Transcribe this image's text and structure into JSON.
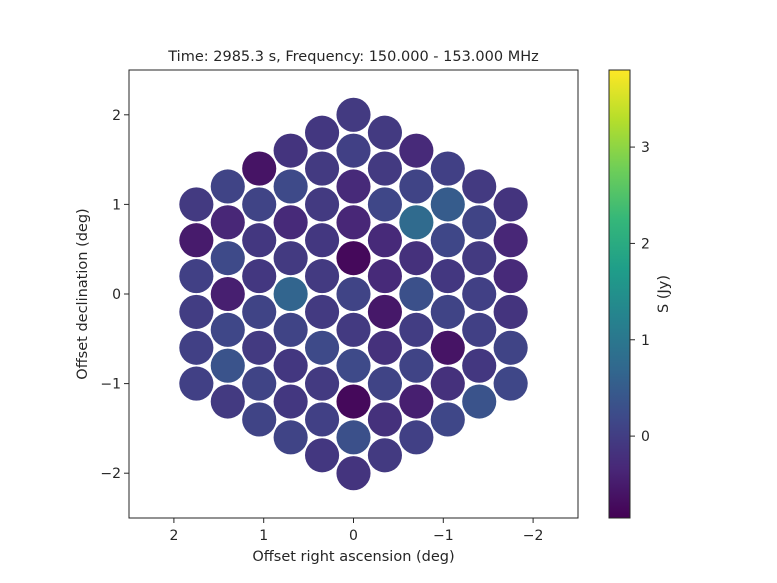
{
  "chart_data": {
    "type": "heatmap",
    "title": "Time: 2985.3 s, Frequency: 150.000 - 153.000 MHz",
    "xlabel": "Offset right ascension (deg)",
    "ylabel": "Offset declination (deg)",
    "colorbar_label": "S (Jy)",
    "colormap": "viridis",
    "color_range": [
      -0.85,
      3.8
    ],
    "xlim": [
      2.5,
      -2.5
    ],
    "ylim": [
      -2.5,
      2.5
    ],
    "x_ticks": [
      2,
      1,
      0,
      -1,
      -2
    ],
    "x_tick_labels": [
      "2",
      "1",
      "0",
      "−1",
      "−2"
    ],
    "y_ticks": [
      2,
      1,
      0,
      -1,
      -2
    ],
    "y_tick_labels": [
      "2",
      "1",
      "0",
      "−1",
      "−2"
    ],
    "colorbar_ticks": [
      0,
      1,
      2,
      3
    ],
    "colorbar_tick_labels": [
      "0",
      "1",
      "2",
      "3"
    ],
    "beam_radius_deg": 0.19,
    "beams": [
      {
        "x": 0.0,
        "y": 2.0,
        "s": -0.05
      },
      {
        "x": 0.35,
        "y": 1.8,
        "s": -0.1
      },
      {
        "x": -0.35,
        "y": 1.8,
        "s": -0.05
      },
      {
        "x": 0.7,
        "y": 1.6,
        "s": -0.15
      },
      {
        "x": 0.0,
        "y": 1.6,
        "s": 0.05
      },
      {
        "x": -0.7,
        "y": 1.6,
        "s": -0.3
      },
      {
        "x": 1.05,
        "y": 1.4,
        "s": -0.6
      },
      {
        "x": 0.35,
        "y": 1.4,
        "s": -0.05
      },
      {
        "x": -0.35,
        "y": 1.4,
        "s": -0.05
      },
      {
        "x": -1.05,
        "y": 1.4,
        "s": 0.05
      },
      {
        "x": 1.4,
        "y": 1.2,
        "s": 0.1
      },
      {
        "x": 0.7,
        "y": 1.2,
        "s": 0.2
      },
      {
        "x": 0.0,
        "y": 1.2,
        "s": -0.3
      },
      {
        "x": -0.7,
        "y": 1.2,
        "s": 0.1
      },
      {
        "x": -1.4,
        "y": 1.2,
        "s": -0.05
      },
      {
        "x": 1.75,
        "y": 1.0,
        "s": -0.05
      },
      {
        "x": 1.05,
        "y": 1.0,
        "s": 0.1
      },
      {
        "x": 0.35,
        "y": 1.0,
        "s": -0.05
      },
      {
        "x": -0.35,
        "y": 1.0,
        "s": 0.15
      },
      {
        "x": -1.05,
        "y": 1.0,
        "s": 0.5
      },
      {
        "x": -1.75,
        "y": 1.0,
        "s": -0.15
      },
      {
        "x": 1.4,
        "y": 0.8,
        "s": -0.35
      },
      {
        "x": 0.7,
        "y": 0.8,
        "s": -0.3
      },
      {
        "x": 0.0,
        "y": 0.8,
        "s": -0.35
      },
      {
        "x": -0.7,
        "y": 0.8,
        "s": 0.75
      },
      {
        "x": -1.4,
        "y": 0.8,
        "s": 0.1
      },
      {
        "x": 1.75,
        "y": 0.6,
        "s": -0.5
      },
      {
        "x": 1.05,
        "y": 0.6,
        "s": -0.1
      },
      {
        "x": 0.35,
        "y": 0.6,
        "s": -0.1
      },
      {
        "x": -0.35,
        "y": 0.6,
        "s": -0.3
      },
      {
        "x": -1.05,
        "y": 0.6,
        "s": 0.15
      },
      {
        "x": -1.75,
        "y": 0.6,
        "s": -0.35
      },
      {
        "x": 1.4,
        "y": 0.4,
        "s": 0.2
      },
      {
        "x": 0.7,
        "y": 0.4,
        "s": -0.05
      },
      {
        "x": 0.0,
        "y": 0.4,
        "s": -0.75
      },
      {
        "x": -0.7,
        "y": 0.4,
        "s": -0.2
      },
      {
        "x": -1.4,
        "y": 0.4,
        "s": -0.05
      },
      {
        "x": 1.75,
        "y": 0.2,
        "s": 0.05
      },
      {
        "x": 1.05,
        "y": 0.2,
        "s": -0.1
      },
      {
        "x": 0.35,
        "y": 0.2,
        "s": -0.05
      },
      {
        "x": -0.35,
        "y": 0.2,
        "s": -0.3
      },
      {
        "x": -1.05,
        "y": 0.2,
        "s": -0.1
      },
      {
        "x": -1.75,
        "y": 0.2,
        "s": -0.3
      },
      {
        "x": 1.4,
        "y": 0.0,
        "s": -0.45
      },
      {
        "x": 0.7,
        "y": 0.0,
        "s": 0.65
      },
      {
        "x": 0.0,
        "y": 0.0,
        "s": 0.1
      },
      {
        "x": -0.7,
        "y": 0.0,
        "s": 0.3
      },
      {
        "x": -1.4,
        "y": 0.0,
        "s": 0.05
      },
      {
        "x": 1.75,
        "y": -0.2,
        "s": 0.0
      },
      {
        "x": 1.05,
        "y": -0.2,
        "s": 0.1
      },
      {
        "x": 0.35,
        "y": -0.2,
        "s": -0.05
      },
      {
        "x": -0.35,
        "y": -0.2,
        "s": -0.55
      },
      {
        "x": -1.05,
        "y": -0.2,
        "s": 0.1
      },
      {
        "x": -1.75,
        "y": -0.2,
        "s": -0.15
      },
      {
        "x": 1.4,
        "y": -0.4,
        "s": 0.15
      },
      {
        "x": 0.7,
        "y": -0.4,
        "s": 0.1
      },
      {
        "x": 0.0,
        "y": -0.4,
        "s": -0.05
      },
      {
        "x": -0.7,
        "y": -0.4,
        "s": 0.0
      },
      {
        "x": -1.4,
        "y": -0.4,
        "s": 0.05
      },
      {
        "x": 1.75,
        "y": -0.6,
        "s": 0.05
      },
      {
        "x": 1.05,
        "y": -0.6,
        "s": -0.05
      },
      {
        "x": 0.35,
        "y": -0.6,
        "s": 0.2
      },
      {
        "x": -0.35,
        "y": -0.6,
        "s": -0.2
      },
      {
        "x": -1.05,
        "y": -0.6,
        "s": -0.6
      },
      {
        "x": -1.75,
        "y": -0.6,
        "s": 0.1
      },
      {
        "x": 1.4,
        "y": -0.8,
        "s": 0.35
      },
      {
        "x": 0.7,
        "y": -0.8,
        "s": -0.1
      },
      {
        "x": 0.0,
        "y": -0.8,
        "s": 0.2
      },
      {
        "x": -0.7,
        "y": -0.8,
        "s": 0.1
      },
      {
        "x": -1.4,
        "y": -0.8,
        "s": -0.1
      },
      {
        "x": 1.75,
        "y": -1.0,
        "s": 0.05
      },
      {
        "x": 1.05,
        "y": -1.0,
        "s": 0.1
      },
      {
        "x": 0.35,
        "y": -1.0,
        "s": -0.05
      },
      {
        "x": -0.35,
        "y": -1.0,
        "s": 0.1
      },
      {
        "x": -1.05,
        "y": -1.0,
        "s": -0.2
      },
      {
        "x": -1.75,
        "y": -1.0,
        "s": 0.15
      },
      {
        "x": 1.4,
        "y": -1.2,
        "s": -0.05
      },
      {
        "x": 0.7,
        "y": -1.2,
        "s": -0.1
      },
      {
        "x": 0.0,
        "y": -1.2,
        "s": -0.75
      },
      {
        "x": -0.7,
        "y": -1.2,
        "s": -0.45
      },
      {
        "x": -1.4,
        "y": -1.2,
        "s": 0.35
      },
      {
        "x": 1.05,
        "y": -1.4,
        "s": 0.1
      },
      {
        "x": 0.35,
        "y": -1.4,
        "s": 0.05
      },
      {
        "x": -0.35,
        "y": -1.4,
        "s": -0.2
      },
      {
        "x": -1.05,
        "y": -1.4,
        "s": 0.15
      },
      {
        "x": 0.7,
        "y": -1.6,
        "s": 0.1
      },
      {
        "x": 0.0,
        "y": -1.6,
        "s": 0.3
      },
      {
        "x": -0.7,
        "y": -1.6,
        "s": 0.05
      },
      {
        "x": 0.35,
        "y": -1.8,
        "s": -0.1
      },
      {
        "x": -0.35,
        "y": -1.8,
        "s": -0.05
      },
      {
        "x": 0.0,
        "y": -2.0,
        "s": -0.15
      }
    ]
  }
}
